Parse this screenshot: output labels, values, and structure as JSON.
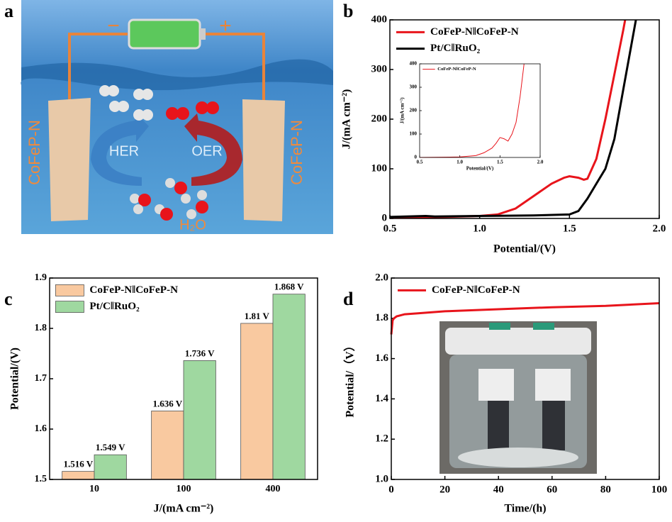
{
  "panel_labels": [
    "a",
    "b",
    "c",
    "d"
  ],
  "schematic": {
    "minus": "−",
    "plus": "+",
    "electrode_left": "CoFeP-N",
    "electrode_right": "CoFeP-N",
    "her": "HER",
    "oer": "OER",
    "water": "H₂O"
  },
  "chart_data": [
    {
      "type": "line",
      "xlabel": "Potential/(V)",
      "ylabel": "J/(mA cm⁻²)",
      "xlim": [
        0.5,
        2.0
      ],
      "xticks": [
        0.5,
        {
          "value": 1,
          "label": "1.0"
        },
        1.5,
        {
          "value": 2,
          "label": "2.0"
        }
      ],
      "ylim": [
        0,
        400
      ],
      "yticks": [
        0,
        100,
        200,
        300,
        400
      ],
      "legend": "upper left",
      "series": [
        {
          "name": "CoFeP-N‖CoFeP-N",
          "color": "#e8141b",
          "x": [
            0.5,
            0.8,
            1.0,
            1.1,
            1.2,
            1.3,
            1.4,
            1.47,
            1.5,
            1.55,
            1.58,
            1.6,
            1.65,
            1.7,
            1.75,
            1.8,
            1.81
          ],
          "values": [
            2,
            3,
            5,
            8,
            20,
            45,
            70,
            82,
            85,
            82,
            78,
            80,
            120,
            200,
            290,
            380,
            400
          ]
        },
        {
          "name": "Pt/C‖RuO₂",
          "color": "#000000",
          "x": [
            0.5,
            0.7,
            0.75,
            1.0,
            1.3,
            1.5,
            1.55,
            1.6,
            1.65,
            1.7,
            1.75,
            1.8,
            1.85,
            1.87
          ],
          "values": [
            3,
            5,
            4,
            5,
            6,
            8,
            15,
            40,
            70,
            100,
            160,
            260,
            360,
            400
          ]
        }
      ]
    },
    {
      "type": "line",
      "xlabel": "Potential/(V)",
      "ylabel": "J/(mA cm⁻²)",
      "xlim": [
        0.5,
        2.0
      ],
      "xticks": [
        0.5,
        {
          "value": 1,
          "label": "1.0"
        },
        1.5,
        {
          "value": 2,
          "label": "2.0"
        }
      ],
      "ylim": [
        0,
        400
      ],
      "yticks": [
        0,
        100,
        200,
        300,
        400
      ],
      "legend": "upper left",
      "series": [
        {
          "name": "CoFeP-N‖CoFeP-N",
          "color": "#e8141b",
          "x": [
            0.5,
            1.0,
            1.2,
            1.3,
            1.4,
            1.45,
            1.5,
            1.55,
            1.6,
            1.65,
            1.7,
            1.75,
            1.8
          ],
          "values": [
            0,
            2,
            8,
            20,
            40,
            60,
            85,
            80,
            70,
            100,
            150,
            260,
            400
          ]
        }
      ]
    },
    {
      "type": "bar",
      "xlabel": "J/(mA cm⁻²)",
      "ylabel": "Potential/(V)",
      "categories": [
        "10",
        "100",
        "400"
      ],
      "ylim": [
        1.5,
        1.9
      ],
      "yticks": [
        1.5,
        1.6,
        1.7,
        1.8,
        1.9
      ],
      "legend": "upper left",
      "series": [
        {
          "name": "CoFeP-N‖CoFeP-N",
          "color": "#f9c9a0",
          "values": [
            1.516,
            1.636,
            1.81
          ],
          "value_labels": [
            "1.516 V",
            "1.636 V",
            "1.81 V"
          ]
        },
        {
          "name": "Pt/C‖RuO₂",
          "color": "#9fd8a0",
          "values": [
            1.549,
            1.736,
            1.868
          ],
          "value_labels": [
            "1.549 V",
            "1.736 V",
            "1.868 V"
          ]
        }
      ]
    },
    {
      "type": "line",
      "xlabel": "Time/(h)",
      "ylabel": "Potential/（V）",
      "xlim": [
        0,
        100
      ],
      "xticks": [
        0,
        20,
        40,
        60,
        80,
        100
      ],
      "ylim": [
        1,
        2
      ],
      "yticks": [
        {
          "value": 1,
          "label": "1.0"
        },
        1.2,
        1.4,
        1.6,
        1.8,
        {
          "value": 2,
          "label": "2.0"
        }
      ],
      "legend": "upper left",
      "series": [
        {
          "name": "CoFeP-N‖CoFeP-N",
          "color": "#e8141b",
          "x": [
            0,
            0.5,
            1,
            2,
            5,
            10,
            20,
            40,
            60,
            80,
            100
          ],
          "values": [
            1.72,
            1.79,
            1.8,
            1.81,
            1.82,
            1.825,
            1.835,
            1.845,
            1.855,
            1.862,
            1.875
          ]
        }
      ]
    }
  ]
}
